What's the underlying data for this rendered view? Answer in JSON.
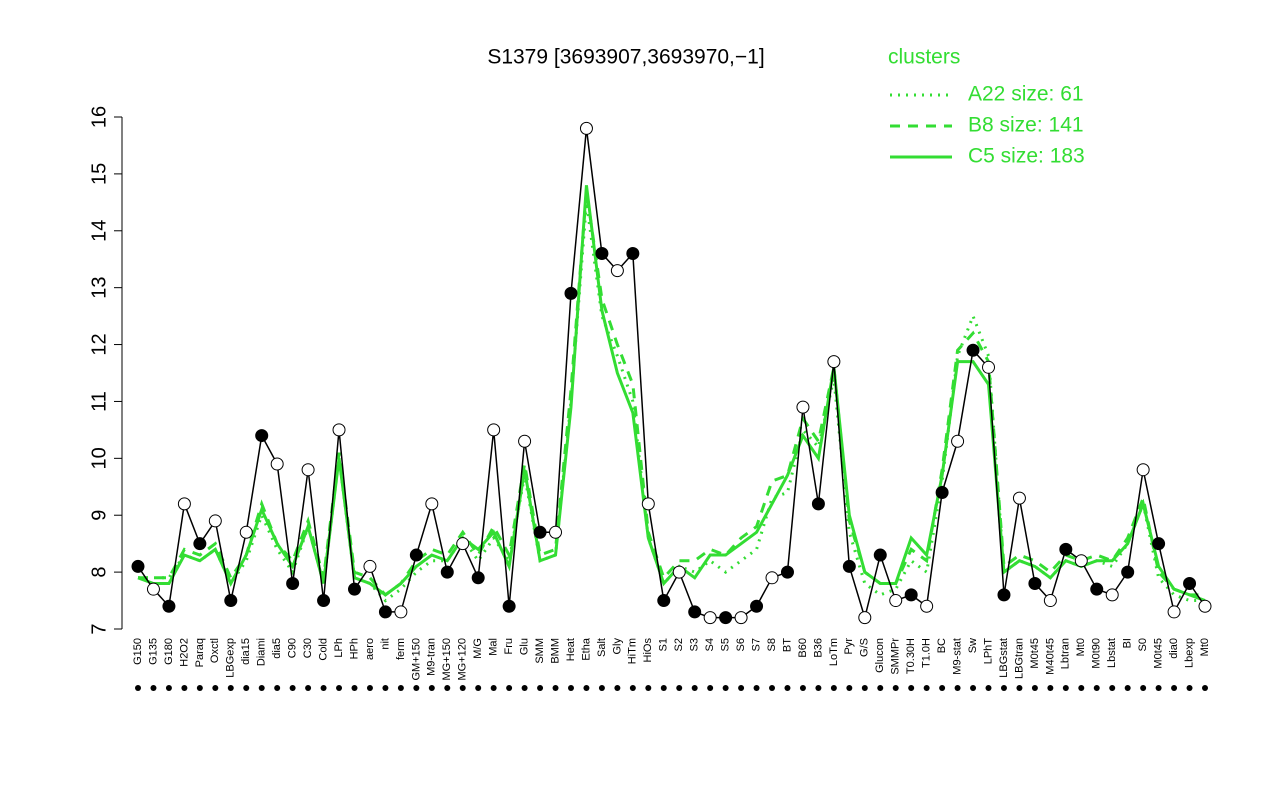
{
  "chart_data": {
    "type": "line",
    "title": "S1379 [3693907,3693970,−1]",
    "legend_title": "clusters",
    "legend_position": "top-right",
    "point_color": "#000000",
    "categories": [
      "G150",
      "G135",
      "G180",
      "H2O2",
      "Paraq",
      "Oxctl",
      "LBGexp",
      "dia15",
      "Diami",
      "dia5",
      "C90",
      "C30",
      "Cold",
      "LPh",
      "HPh",
      "aero",
      "nit",
      "ferm",
      "GM+150",
      "M9-tran",
      "MG+150",
      "MG+120",
      "M/G",
      "Mal",
      "Fru",
      "Glu",
      "SMM",
      "BMM",
      "Heat",
      "Etha",
      "Salt",
      "Gly",
      "HiTm",
      "HiOs",
      "S1",
      "S2",
      "S3",
      "S4",
      "S5",
      "S6",
      "S7",
      "S8",
      "BT",
      "B60",
      "B36",
      "LoTm",
      "Pyr",
      "G/S",
      "Glucon",
      "SMMPr",
      "T0.30H",
      "T1.0H",
      "BC",
      "M9-stat",
      "Sw",
      "LPhT",
      "LBGstat",
      "LBGtran",
      "M0t45",
      "M40t45",
      "Lbtran",
      "Mt0",
      "M0t90",
      "Lbstat",
      "BI",
      "S0",
      "M0t45",
      "dia0",
      "Lbexp",
      "Mt0"
    ],
    "values": [
      8.1,
      7.7,
      7.4,
      9.2,
      8.5,
      8.9,
      7.5,
      8.7,
      10.4,
      9.9,
      7.8,
      9.8,
      7.5,
      10.5,
      7.7,
      8.1,
      7.3,
      7.3,
      8.3,
      9.2,
      8.0,
      8.5,
      7.9,
      10.5,
      7.4,
      10.3,
      8.7,
      8.7,
      12.9,
      15.8,
      13.6,
      13.3,
      13.6,
      9.2,
      7.5,
      8.0,
      7.3,
      7.2,
      7.2,
      7.2,
      7.4,
      7.9,
      8.0,
      10.9,
      9.2,
      11.7,
      8.1,
      7.2,
      8.3,
      7.5,
      7.6,
      7.4,
      9.4,
      10.3,
      11.9,
      11.6,
      7.6,
      9.3,
      7.8,
      7.5,
      8.4,
      8.2,
      7.7,
      7.6,
      8.0,
      9.8,
      8.5,
      7.3,
      7.8,
      7.4
    ],
    "series": [
      {
        "name": "A22 size: 61",
        "color": "#33dd33",
        "dash": "dotted",
        "values": [
          7.9,
          7.9,
          7.9,
          8.3,
          8.2,
          8.4,
          7.8,
          8.2,
          9.0,
          8.4,
          8.0,
          8.8,
          7.8,
          10.0,
          7.9,
          7.8,
          7.5,
          7.7,
          8.0,
          8.2,
          8.2,
          8.6,
          8.2,
          8.6,
          8.2,
          9.7,
          8.2,
          8.3,
          11.0,
          14.5,
          12.5,
          11.8,
          11.0,
          8.6,
          7.8,
          8.1,
          8.0,
          8.2,
          8.0,
          8.2,
          8.4,
          9.3,
          9.4,
          10.5,
          10.2,
          11.4,
          8.7,
          7.8,
          7.6,
          7.7,
          8.2,
          8.0,
          9.6,
          11.8,
          12.5,
          11.8,
          8.0,
          8.2,
          8.1,
          7.9,
          8.2,
          8.1,
          8.2,
          8.1,
          8.5,
          9.2,
          7.9,
          7.6,
          7.5,
          7.5
        ]
      },
      {
        "name": "B8 size: 141",
        "color": "#33dd33",
        "dash": "dashed",
        "values": [
          7.9,
          7.9,
          7.9,
          8.4,
          8.3,
          8.5,
          7.9,
          8.3,
          9.2,
          8.5,
          8.2,
          8.9,
          7.9,
          10.1,
          8.0,
          7.9,
          7.6,
          7.8,
          8.2,
          8.4,
          8.3,
          8.7,
          8.3,
          8.8,
          8.3,
          9.9,
          8.3,
          8.4,
          11.2,
          14.7,
          12.8,
          12.0,
          11.3,
          8.7,
          7.9,
          8.2,
          8.2,
          8.4,
          8.3,
          8.6,
          8.8,
          9.6,
          9.7,
          10.7,
          10.3,
          11.6,
          8.9,
          8.0,
          7.8,
          7.8,
          8.4,
          8.2,
          9.8,
          11.9,
          12.2,
          11.7,
          8.1,
          8.3,
          8.2,
          8.0,
          8.3,
          8.2,
          8.3,
          8.2,
          8.6,
          9.3,
          8.0,
          7.7,
          7.6,
          7.6
        ]
      },
      {
        "name": "C5 size: 183",
        "color": "#33dd33",
        "dash": "solid",
        "values": [
          7.9,
          7.8,
          7.8,
          8.3,
          8.2,
          8.4,
          7.8,
          8.3,
          9.1,
          8.5,
          8.1,
          8.8,
          7.8,
          10.0,
          7.9,
          7.8,
          7.6,
          7.8,
          8.1,
          8.3,
          8.2,
          8.6,
          8.4,
          8.7,
          8.1,
          9.8,
          8.2,
          8.3,
          10.9,
          14.8,
          12.6,
          11.5,
          10.8,
          8.6,
          7.8,
          8.1,
          7.9,
          8.3,
          8.3,
          8.5,
          8.7,
          9.2,
          9.7,
          10.4,
          10.0,
          11.6,
          9.0,
          8.0,
          7.8,
          7.8,
          8.6,
          8.3,
          9.7,
          11.7,
          11.7,
          11.3,
          8.0,
          8.2,
          8.1,
          7.9,
          8.2,
          8.1,
          8.2,
          8.2,
          8.5,
          9.2,
          8.1,
          7.7,
          7.6,
          7.5
        ]
      }
    ],
    "ylim": [
      7,
      16
    ],
    "yticks": [
      7,
      8,
      9,
      10,
      11,
      12,
      13,
      14,
      15,
      16
    ]
  }
}
